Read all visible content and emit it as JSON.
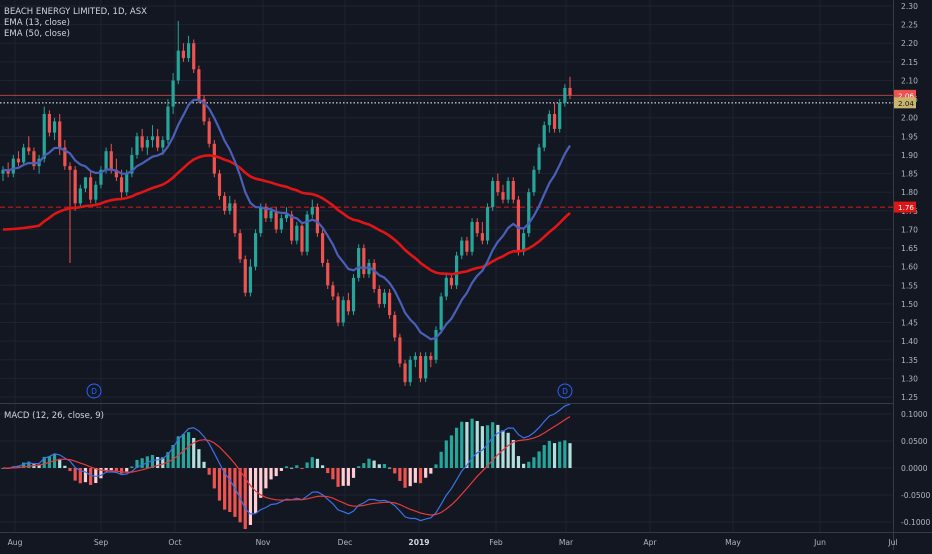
{
  "chart_data": {
    "type": "candlestick",
    "title": "BEACH ENERGY LIMITED, 1D, ASX",
    "legend": [
      "EMA (13, close)",
      "EMA (50, close)"
    ],
    "price_axis": {
      "ylim": [
        1.22,
        2.32
      ],
      "ticks": [
        "2.30",
        "2.25",
        "2.20",
        "2.15",
        "2.10",
        "2.05",
        "2.00",
        "1.95",
        "1.90",
        "1.85",
        "1.80",
        "1.75",
        "1.70",
        "1.65",
        "1.60",
        "1.55",
        "1.50",
        "1.45",
        "1.40",
        "1.35",
        "1.30",
        "1.25"
      ]
    },
    "price_labels": [
      {
        "value": 2.06,
        "text": "2.06",
        "color": "#ef5350"
      },
      {
        "value": 2.04,
        "text": "2.04",
        "color": "#c9b56b"
      },
      {
        "value": 1.76,
        "text": "1.76",
        "color": "#e01616"
      }
    ],
    "hlines": [
      {
        "value": 2.06,
        "style": "solid",
        "color": "#ef5350"
      },
      {
        "value": 2.04,
        "style": "dotted",
        "color": "#ffffff"
      },
      {
        "value": 1.76,
        "style": "dashed",
        "color": "#e01616"
      }
    ],
    "time_axis": {
      "labels": [
        "Aug",
        "Sep",
        "Oct",
        "Nov",
        "Dec",
        "2019",
        "Feb",
        "Mar",
        "Apr",
        "May",
        "Jun",
        "Jul"
      ],
      "bold": [
        "2019"
      ]
    },
    "dividend_markers": [
      "D",
      "D"
    ],
    "candles": [
      [
        1.85,
        1.87,
        1.83,
        1.86
      ],
      [
        1.86,
        1.88,
        1.84,
        1.85
      ],
      [
        1.85,
        1.9,
        1.84,
        1.89
      ],
      [
        1.89,
        1.91,
        1.87,
        1.88
      ],
      [
        1.88,
        1.93,
        1.87,
        1.92
      ],
      [
        1.92,
        1.95,
        1.9,
        1.91
      ],
      [
        1.91,
        1.92,
        1.86,
        1.87
      ],
      [
        1.87,
        1.9,
        1.85,
        1.89
      ],
      [
        1.89,
        2.03,
        1.88,
        2.01
      ],
      [
        2.01,
        2.02,
        1.95,
        1.96
      ],
      [
        1.96,
        2.0,
        1.94,
        1.99
      ],
      [
        1.99,
        2.01,
        1.9,
        1.92
      ],
      [
        1.92,
        1.94,
        1.86,
        1.87
      ],
      [
        1.87,
        1.88,
        1.61,
        1.86
      ],
      [
        1.86,
        1.87,
        1.75,
        1.77
      ],
      [
        1.77,
        1.82,
        1.76,
        1.81
      ],
      [
        1.81,
        1.84,
        1.8,
        1.84
      ],
      [
        1.84,
        1.86,
        1.77,
        1.78
      ],
      [
        1.78,
        1.83,
        1.77,
        1.82
      ],
      [
        1.82,
        1.87,
        1.81,
        1.86
      ],
      [
        1.86,
        1.92,
        1.85,
        1.91
      ],
      [
        1.91,
        1.93,
        1.85,
        1.86
      ],
      [
        1.86,
        1.89,
        1.83,
        1.84
      ],
      [
        1.84,
        1.86,
        1.78,
        1.8
      ],
      [
        1.8,
        1.86,
        1.79,
        1.85
      ],
      [
        1.85,
        1.92,
        1.84,
        1.9
      ],
      [
        1.9,
        1.96,
        1.89,
        1.95
      ],
      [
        1.95,
        1.97,
        1.91,
        1.92
      ],
      [
        1.92,
        1.95,
        1.9,
        1.94
      ],
      [
        1.94,
        1.98,
        1.92,
        1.95
      ],
      [
        1.95,
        1.97,
        1.91,
        1.92
      ],
      [
        1.92,
        1.95,
        1.9,
        1.94
      ],
      [
        1.94,
        2.05,
        1.93,
        2.03
      ],
      [
        2.03,
        2.12,
        2.01,
        2.1
      ],
      [
        2.1,
        2.26,
        2.09,
        2.18
      ],
      [
        2.18,
        2.2,
        2.15,
        2.16
      ],
      [
        2.16,
        2.22,
        2.15,
        2.2
      ],
      [
        2.2,
        2.21,
        2.12,
        2.13
      ],
      [
        2.13,
        2.14,
        2.04,
        2.05
      ],
      [
        2.05,
        2.06,
        1.98,
        1.99
      ],
      [
        1.99,
        2.0,
        1.92,
        1.93
      ],
      [
        1.93,
        1.94,
        1.84,
        1.85
      ],
      [
        1.85,
        1.86,
        1.78,
        1.79
      ],
      [
        1.79,
        1.8,
        1.74,
        1.75
      ],
      [
        1.75,
        1.79,
        1.74,
        1.77
      ],
      [
        1.77,
        1.78,
        1.68,
        1.69
      ],
      [
        1.69,
        1.7,
        1.61,
        1.62
      ],
      [
        1.62,
        1.63,
        1.52,
        1.53
      ],
      [
        1.53,
        1.62,
        1.52,
        1.6
      ],
      [
        1.6,
        1.7,
        1.59,
        1.69
      ],
      [
        1.69,
        1.77,
        1.68,
        1.76
      ],
      [
        1.76,
        1.77,
        1.72,
        1.73
      ],
      [
        1.73,
        1.76,
        1.72,
        1.75
      ],
      [
        1.75,
        1.76,
        1.69,
        1.7
      ],
      [
        1.7,
        1.74,
        1.69,
        1.73
      ],
      [
        1.73,
        1.76,
        1.72,
        1.74
      ],
      [
        1.74,
        1.75,
        1.66,
        1.67
      ],
      [
        1.67,
        1.72,
        1.66,
        1.71
      ],
      [
        1.71,
        1.72,
        1.63,
        1.64
      ],
      [
        1.64,
        1.75,
        1.63,
        1.74
      ],
      [
        1.74,
        1.78,
        1.73,
        1.76
      ],
      [
        1.76,
        1.77,
        1.68,
        1.69
      ],
      [
        1.69,
        1.7,
        1.6,
        1.61
      ],
      [
        1.61,
        1.62,
        1.54,
        1.55
      ],
      [
        1.55,
        1.56,
        1.51,
        1.52
      ],
      [
        1.52,
        1.53,
        1.44,
        1.45
      ],
      [
        1.45,
        1.52,
        1.44,
        1.51
      ],
      [
        1.51,
        1.53,
        1.47,
        1.48
      ],
      [
        1.48,
        1.58,
        1.47,
        1.57
      ],
      [
        1.57,
        1.66,
        1.56,
        1.65
      ],
      [
        1.65,
        1.66,
        1.57,
        1.58
      ],
      [
        1.58,
        1.62,
        1.57,
        1.61
      ],
      [
        1.61,
        1.62,
        1.53,
        1.54
      ],
      [
        1.54,
        1.55,
        1.49,
        1.5
      ],
      [
        1.5,
        1.54,
        1.49,
        1.53
      ],
      [
        1.53,
        1.54,
        1.46,
        1.47
      ],
      [
        1.47,
        1.48,
        1.4,
        1.41
      ],
      [
        1.41,
        1.42,
        1.33,
        1.34
      ],
      [
        1.34,
        1.35,
        1.28,
        1.29
      ],
      [
        1.29,
        1.36,
        1.28,
        1.35
      ],
      [
        1.35,
        1.37,
        1.33,
        1.36
      ],
      [
        1.36,
        1.37,
        1.29,
        1.3
      ],
      [
        1.3,
        1.37,
        1.29,
        1.36
      ],
      [
        1.36,
        1.37,
        1.33,
        1.35
      ],
      [
        1.35,
        1.44,
        1.34,
        1.43
      ],
      [
        1.43,
        1.53,
        1.42,
        1.52
      ],
      [
        1.52,
        1.58,
        1.51,
        1.57
      ],
      [
        1.57,
        1.58,
        1.54,
        1.55
      ],
      [
        1.55,
        1.64,
        1.54,
        1.63
      ],
      [
        1.63,
        1.68,
        1.62,
        1.67
      ],
      [
        1.67,
        1.68,
        1.63,
        1.64
      ],
      [
        1.64,
        1.73,
        1.63,
        1.72
      ],
      [
        1.72,
        1.73,
        1.68,
        1.69
      ],
      [
        1.69,
        1.72,
        1.66,
        1.67
      ],
      [
        1.67,
        1.77,
        1.66,
        1.76
      ],
      [
        1.76,
        1.84,
        1.75,
        1.83
      ],
      [
        1.83,
        1.85,
        1.79,
        1.8
      ],
      [
        1.8,
        1.82,
        1.77,
        1.78
      ],
      [
        1.78,
        1.84,
        1.77,
        1.83
      ],
      [
        1.83,
        1.84,
        1.77,
        1.78
      ],
      [
        1.78,
        1.79,
        1.63,
        1.64
      ],
      [
        1.64,
        1.7,
        1.63,
        1.69
      ],
      [
        1.69,
        1.81,
        1.68,
        1.8
      ],
      [
        1.8,
        1.87,
        1.79,
        1.86
      ],
      [
        1.86,
        1.93,
        1.85,
        1.92
      ],
      [
        1.92,
        1.99,
        1.91,
        1.98
      ],
      [
        1.98,
        2.02,
        1.96,
        2.01
      ],
      [
        2.01,
        2.04,
        1.96,
        1.97
      ],
      [
        1.97,
        2.05,
        1.96,
        2.04
      ],
      [
        2.04,
        2.09,
        2.03,
        2.08
      ],
      [
        2.08,
        2.11,
        2.05,
        2.06
      ]
    ],
    "macd": {
      "label": "MACD (12, 26, close, 9)",
      "ylim": [
        -0.11,
        0.115
      ],
      "ticks": [
        "0.1000",
        "0.0500",
        "0.0000",
        "-0.0500",
        "-0.1000"
      ],
      "tick_values": [
        0.1,
        0.05,
        0.0,
        -0.05,
        -0.1
      ],
      "series": [
        {
          "color": "#3a72e8"
        },
        {
          "color": "#e53a3a"
        }
      ]
    }
  }
}
